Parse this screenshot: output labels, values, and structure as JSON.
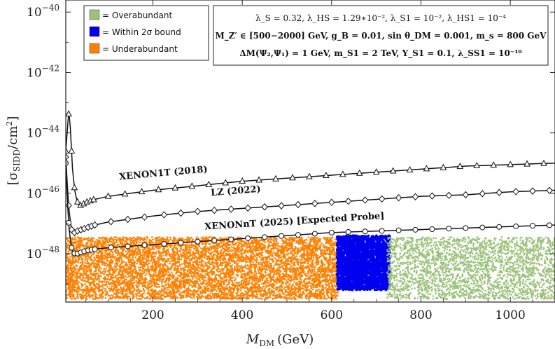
{
  "chart_data": {
    "type": "scatter",
    "title": "",
    "xlabel_main": "M",
    "xlabel_sub": "DM",
    "xlabel_unit": "(GeV)",
    "ylabel_main": "[σ",
    "ylabel_sub": "SIDD",
    "ylabel_unit": "/cm",
    "ylabel_sup": "2",
    "ylabel_close": "]",
    "xlim": [
      5,
      1100
    ],
    "ylim_log10": [
      -49.6,
      -39.6
    ],
    "y_scale": "log",
    "grid": false,
    "x_ticks": [
      {
        "value": 200,
        "label": "200"
      },
      {
        "value": 400,
        "label": "400"
      },
      {
        "value": 600,
        "label": "600"
      },
      {
        "value": 800,
        "label": "800"
      },
      {
        "value": 1000,
        "label": "1000"
      }
    ],
    "y_ticks": [
      {
        "exp": -40,
        "base": "10",
        "sup": "−40"
      },
      {
        "exp": -42,
        "base": "10",
        "sup": "−42"
      },
      {
        "exp": -44,
        "base": "10",
        "sup": "−44"
      },
      {
        "exp": -46,
        "base": "10",
        "sup": "−46"
      },
      {
        "exp": -48,
        "base": "10",
        "sup": "−48"
      }
    ],
    "legend": {
      "placement": "top-left",
      "entries": [
        {
          "label": "= Overabundant",
          "color": "#9cc27a"
        },
        {
          "label": "= Within 2σ bound",
          "color": "#0000ee"
        },
        {
          "label": "= Underabundant",
          "color": "#ff8000"
        }
      ]
    },
    "scatter_regions": [
      {
        "name": "Underabundant",
        "color": "#ff8000",
        "x_range": [
          5,
          615
        ],
        "log10_y_range": [
          -49.5,
          -47.45
        ]
      },
      {
        "name": "Within 2σ bound",
        "color": "#0000ee",
        "x_range": [
          612,
          730
        ],
        "log10_y_range": [
          -49.2,
          -47.4
        ]
      },
      {
        "name": "Overabundant",
        "color": "#9cc27a",
        "x_range": [
          725,
          1100
        ],
        "log10_y_range": [
          -49.5,
          -47.45
        ]
      }
    ],
    "series": [
      {
        "name": "XENON1T (2018)",
        "marker": "triangle",
        "x": [
          5,
          8,
          10,
          12,
          15,
          18,
          20,
          25,
          30,
          35,
          40,
          50,
          70,
          100,
          150,
          200,
          300,
          400,
          500,
          600,
          700,
          800,
          900,
          1000,
          1100
        ],
        "log10_y": [
          -44.6,
          -44.0,
          -43.6,
          -43.3,
          -43.8,
          -44.6,
          -45.2,
          -45.9,
          -46.25,
          -46.4,
          -46.4,
          -46.3,
          -46.2,
          -46.1,
          -46.0,
          -45.9,
          -45.75,
          -45.6,
          -45.5,
          -45.4,
          -45.3,
          -45.2,
          -45.1,
          -45.05,
          -45.0
        ]
      },
      {
        "name": "LZ (2022)",
        "marker": "diamond",
        "x": [
          5,
          8,
          10,
          12,
          15,
          18,
          20,
          25,
          30,
          40,
          50,
          70,
          100,
          150,
          200,
          300,
          400,
          500,
          600,
          700,
          800,
          900,
          1000,
          1100
        ],
        "log10_y": [
          -44.8,
          -45.6,
          -46.1,
          -46.5,
          -46.9,
          -47.2,
          -47.3,
          -47.3,
          -47.25,
          -47.2,
          -47.15,
          -47.05,
          -46.95,
          -46.85,
          -46.75,
          -46.6,
          -46.5,
          -46.4,
          -46.3,
          -46.2,
          -46.1,
          -46.05,
          -45.95,
          -45.9
        ]
      },
      {
        "name": "XENONnT (2025) [Expected Probe]",
        "marker": "circle",
        "x": [
          5,
          8,
          10,
          12,
          15,
          18,
          20,
          25,
          30,
          40,
          50,
          70,
          100,
          150,
          200,
          300,
          400,
          500,
          600,
          700,
          800,
          900,
          1000,
          1100
        ],
        "log10_y": [
          -45.0,
          -46.0,
          -46.6,
          -47.1,
          -47.5,
          -47.8,
          -47.9,
          -48.0,
          -48.0,
          -47.95,
          -47.9,
          -47.85,
          -47.8,
          -47.75,
          -47.7,
          -47.6,
          -47.5,
          -47.4,
          -47.3,
          -47.25,
          -47.2,
          -47.15,
          -47.1,
          -47.05
        ]
      }
    ],
    "curve_labels": [
      {
        "text": "XENON1T (2018)",
        "x": 125,
        "log10_y": -45.55
      },
      {
        "text": "LZ (2022)",
        "x": 330,
        "log10_y": -46.08
      },
      {
        "text": "XENONnT (2025) [Expected Probe]",
        "x": 316,
        "log10_y": -47.2
      }
    ],
    "parameters": {
      "line1": "λ_S = 0.32, λ_HS = 1.29∗10⁻², λ_S1 = 10⁻², λ_HS1 = 10⁻⁴",
      "line2": "M_Z′ ∈ [500−2000] GeV, g_B = 0.01, sin θ_DM = 0.001, m_s = 800 GeV",
      "line3": "ΔM(Ψ₂,Ψ₁) = 1 GeV, m_S1 = 2 TeV, Y_S1 = 0.1, λ_SS1 = 10⁻¹⁰"
    }
  }
}
